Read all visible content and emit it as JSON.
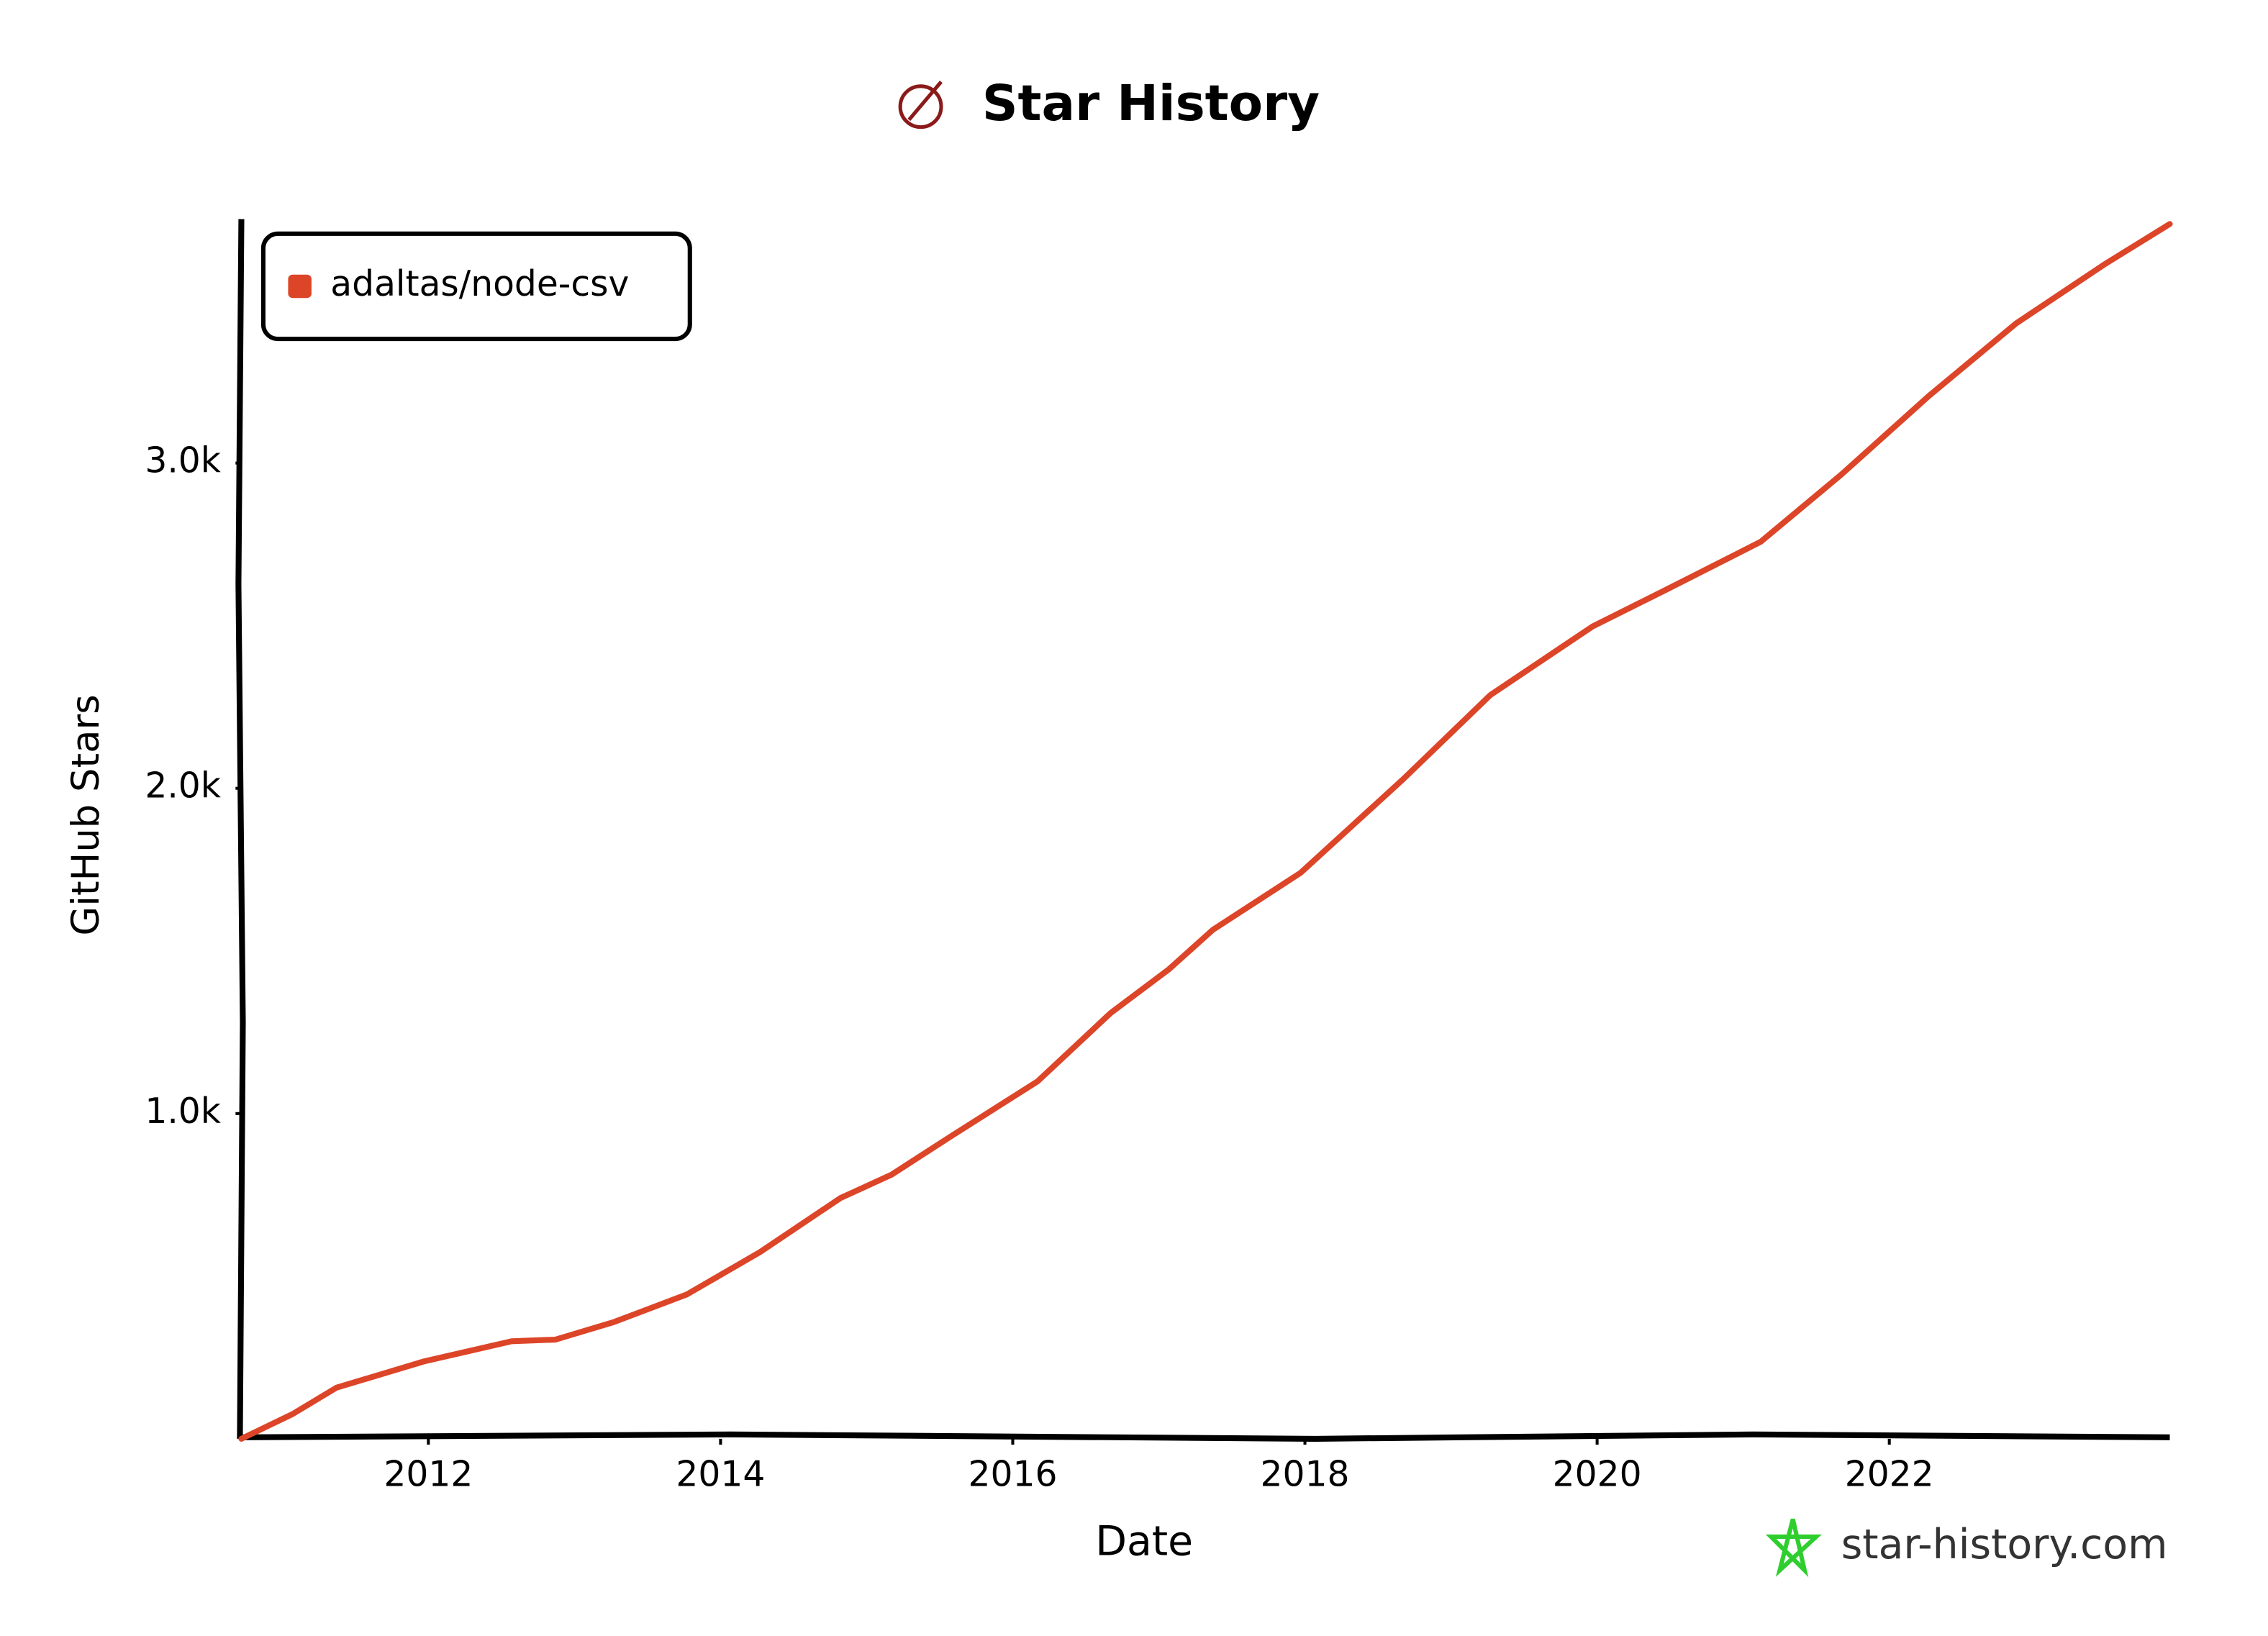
{
  "chart_data": {
    "type": "line",
    "title": "Star History",
    "x_label": "Date",
    "y_label": "GitHub Stars",
    "watermark": "star-history.com",
    "x": [
      2010.72,
      2011.07,
      2011.37,
      2011.97,
      2012.57,
      2012.87,
      2013.27,
      2013.77,
      2014.27,
      2014.82,
      2015.17,
      2015.57,
      2016.17,
      2016.67,
      2017.07,
      2017.37,
      2017.97,
      2018.67,
      2019.27,
      2019.97,
      2020.47,
      2021.12,
      2021.67,
      2022.27,
      2022.87,
      2023.47,
      2023.92
    ],
    "series": [
      {
        "name": "adaltas/node-csv",
        "color": "#dd4528",
        "values": [
          0,
          76,
          157,
          238,
          300,
          305,
          359,
          444,
          574,
          740,
          812,
          928,
          1099,
          1309,
          1444,
          1565,
          1740,
          2027,
          2287,
          2498,
          2610,
          2758,
          2964,
          3206,
          3430,
          3610,
          3735
        ]
      }
    ],
    "xlim": [
      2010.72,
      2023.92
    ],
    "xticks": [
      2012,
      2014,
      2016,
      2018,
      2020,
      2022
    ],
    "ylim": [
      0,
      3750
    ],
    "yticks": [
      {
        "value": 1000,
        "label": "1.0k"
      },
      {
        "value": 2000,
        "label": "2.0k"
      },
      {
        "value": 3000,
        "label": "3.0k"
      }
    ],
    "grid": false,
    "legend": "top-left"
  }
}
